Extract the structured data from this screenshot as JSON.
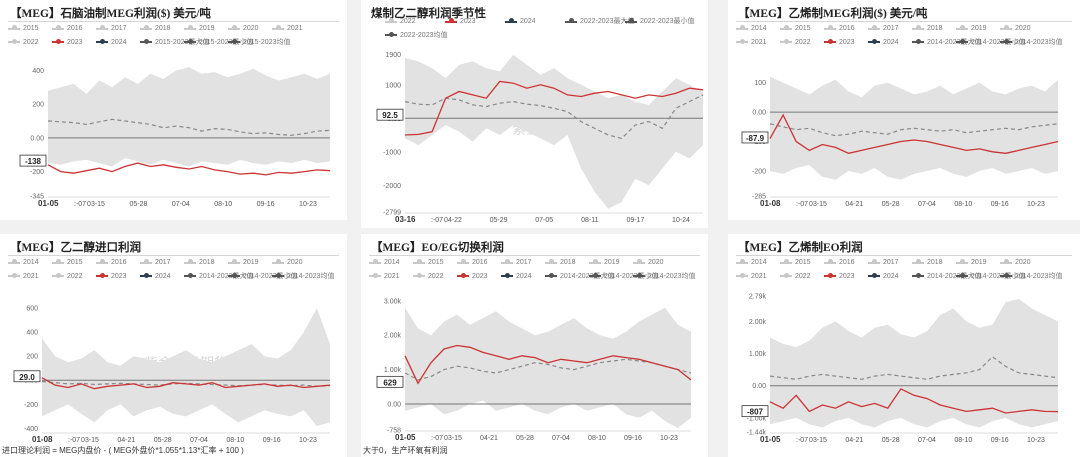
{
  "watermark": "紫金天风期货",
  "notes": {
    "bottom_left": "进口理论利润 = MEG内盘价 - ( MEG外盘价*1.055*1.13*汇率 + 100 )",
    "bottom_mid": "大于0，生产环氧有利润"
  },
  "colors": {
    "grey": "#c8c8c8",
    "red": "#cc3333",
    "navy": "#2c3e50",
    "dark": "#555555",
    "band": "#e2e2e2"
  },
  "chart_data": [
    {
      "id": "p1",
      "type": "line",
      "title": "【MEG】石脑油制MEG利润($) 美元/吨",
      "legend": [
        "2015",
        "2016",
        "2017",
        "2018",
        "2019",
        "2020",
        "2021",
        "2022",
        "2023",
        "2024",
        "2015-2023最大值",
        "2015-2023最小值",
        "2015-2023均值"
      ],
      "yticks": [
        {
          "v": 400,
          "t": "400"
        },
        {
          "v": 200,
          "t": "200"
        },
        {
          "v": 0,
          "t": "0.00"
        },
        {
          "v": -200,
          "t": "-200"
        },
        {
          "v": -345,
          "t": "-345"
        }
      ],
      "ylim": [
        -345,
        450
      ],
      "xticks": [
        "01-05",
        "03-15",
        "05-28",
        "07-04",
        "08-10",
        "09-16",
        "10-23"
      ],
      "x_extra": ":-07",
      "badge": "-138",
      "band_upper": [
        280,
        300,
        320,
        260,
        340,
        300,
        360,
        320,
        380,
        350,
        400,
        420,
        380,
        390,
        360,
        380,
        410,
        370,
        340,
        360,
        380,
        350,
        380
      ],
      "band_lower": [
        -150,
        -160,
        -140,
        -130,
        -150,
        -170,
        -120,
        -140,
        -160,
        -130,
        -150,
        -170,
        -140,
        -150,
        -160,
        -130,
        -150,
        -160,
        -140,
        -150,
        -130,
        -150,
        -140
      ],
      "mean": [
        100,
        95,
        90,
        80,
        95,
        110,
        100,
        90,
        80,
        60,
        70,
        60,
        40,
        55,
        50,
        35,
        25,
        30,
        20,
        15,
        25,
        40,
        45
      ],
      "y2023": [
        -160,
        -200,
        -210,
        -195,
        -180,
        -200,
        -170,
        -150,
        -170,
        -160,
        -175,
        -185,
        -170,
        -190,
        -200,
        -215,
        -210,
        -220,
        -205,
        -210,
        -200,
        -190,
        -195
      ]
    },
    {
      "id": "p2",
      "type": "line",
      "title": "煤制乙二醇利润季节性",
      "legend": [
        "2022",
        "2023",
        "2024",
        "2022-2023最大值",
        "2022-2023最小值",
        "2022-2023均值"
      ],
      "yticks": [
        {
          "v": 1900,
          "t": "1900"
        },
        {
          "v": 1000,
          "t": "1000"
        },
        {
          "v": 0,
          "t": "0.00"
        },
        {
          "v": -1000,
          "t": "-1000"
        },
        {
          "v": -2000,
          "t": "-2000"
        },
        {
          "v": -2799,
          "t": "-2799"
        }
      ],
      "ylim": [
        -2799,
        2100
      ],
      "xticks": [
        "03-16",
        "04-22",
        "05-29",
        "07-05",
        "08-11",
        "09-17",
        "10-24"
      ],
      "x_extra": ":-07",
      "badge": "92.5",
      "band_upper": [
        1800,
        1700,
        1500,
        1200,
        1600,
        1700,
        1500,
        1400,
        1900,
        1600,
        1300,
        1500,
        1200,
        1000,
        800,
        600,
        700,
        500,
        400,
        800,
        1200,
        1000,
        800
      ],
      "band_lower": [
        -600,
        -800,
        -500,
        -200,
        -400,
        -700,
        -300,
        -500,
        -200,
        -400,
        -600,
        -800,
        -500,
        -1500,
        -2200,
        -2700,
        -2500,
        -1800,
        -2000,
        -1500,
        -1000,
        -1200,
        -800
      ],
      "mean": [
        500,
        420,
        400,
        600,
        550,
        400,
        350,
        450,
        500,
        420,
        380,
        300,
        200,
        -100,
        -300,
        -500,
        -600,
        -200,
        -100,
        -300,
        300,
        500,
        700
      ],
      "y2023": [
        -500,
        -480,
        -400,
        600,
        800,
        700,
        600,
        1100,
        1050,
        900,
        1000,
        900,
        700,
        650,
        750,
        800,
        700,
        600,
        700,
        650,
        750,
        900,
        850
      ]
    },
    {
      "id": "p3",
      "type": "line",
      "title": "【MEG】乙烯制MEG利润($) 美元/吨",
      "legend": [
        "2014",
        "2015",
        "2016",
        "2017",
        "2018",
        "2019",
        "2020",
        "2021",
        "2022",
        "2023",
        "2024",
        "2014-2023最大值",
        "2014-2023最小值",
        "2014-2023均值"
      ],
      "yticks": [
        {
          "v": 100,
          "t": "100"
        },
        {
          "v": 0,
          "t": "0.00"
        },
        {
          "v": -100,
          "t": "-100"
        },
        {
          "v": -200,
          "t": "-200"
        },
        {
          "v": -285,
          "t": "-285"
        }
      ],
      "ylim": [
        -285,
        170
      ],
      "xticks": [
        "01-08",
        "03-15",
        "04-21",
        "05-28",
        "07-04",
        "08-10",
        "09-16",
        "10-23"
      ],
      "x_extra": ":-07",
      "badge": "-87.9",
      "band_upper": [
        120,
        100,
        80,
        60,
        90,
        110,
        70,
        50,
        90,
        100,
        80,
        60,
        70,
        90,
        60,
        80,
        100,
        70,
        60,
        80,
        90,
        70,
        110
      ],
      "band_lower": [
        -200,
        -210,
        -190,
        -180,
        -220,
        -230,
        -200,
        -210,
        -190,
        -220,
        -230,
        -210,
        -200,
        -190,
        -210,
        -220,
        -200,
        -190,
        -210,
        -200,
        -190,
        -210,
        -200
      ],
      "mean": [
        -40,
        -50,
        -60,
        -55,
        -70,
        -80,
        -75,
        -65,
        -70,
        -75,
        -60,
        -55,
        -60,
        -65,
        -60,
        -70,
        -65,
        -60,
        -55,
        -60,
        -50,
        -45,
        -40
      ],
      "y2023": [
        -90,
        -10,
        -100,
        -130,
        -110,
        -120,
        -140,
        -130,
        -120,
        -110,
        -100,
        -95,
        -100,
        -110,
        -120,
        -130,
        -125,
        -135,
        -140,
        -130,
        -120,
        -110,
        -100
      ]
    },
    {
      "id": "p4",
      "type": "line",
      "title": "【MEG】乙二醇进口利润",
      "legend": [
        "2014",
        "2015",
        "2016",
        "2017",
        "2018",
        "2019",
        "2020",
        "2021",
        "2022",
        "2023",
        "2024",
        "2014-2023最大值",
        "2014-2023最小值",
        "2014-2023均值"
      ],
      "yticks": [
        {
          "v": 600,
          "t": "600"
        },
        {
          "v": 400,
          "t": "400"
        },
        {
          "v": 200,
          "t": "200"
        },
        {
          "v": 0,
          "t": "0.00"
        },
        {
          "v": -200,
          "t": "-200"
        },
        {
          "v": -400,
          "t": "-400"
        }
      ],
      "ylim": [
        -430,
        700
      ],
      "xticks": [
        "01-08",
        "03-15",
        "04-21",
        "05-28",
        "07-04",
        "08-10",
        "09-16",
        "10-23"
      ],
      "x_extra": ":-07",
      "badge": "29.0",
      "band_upper": [
        350,
        200,
        150,
        180,
        250,
        150,
        120,
        200,
        180,
        150,
        200,
        250,
        180,
        150,
        200,
        250,
        300,
        200,
        180,
        250,
        400,
        600,
        300
      ],
      "band_lower": [
        -300,
        -250,
        -200,
        -280,
        -350,
        -250,
        -200,
        -300,
        -250,
        -220,
        -280,
        -300,
        -250,
        -200,
        -280,
        -350,
        -300,
        -250,
        -280,
        -300,
        -250,
        -380,
        -350
      ],
      "mean": [
        -10,
        -20,
        -30,
        -25,
        -35,
        -30,
        -25,
        -30,
        -35,
        -40,
        -30,
        -25,
        -30,
        -35,
        -40,
        -45,
        -40,
        -35,
        -40,
        -45,
        -40,
        -50,
        -45
      ],
      "y2023": [
        20,
        -40,
        -60,
        -30,
        -70,
        -50,
        -40,
        -30,
        -60,
        -50,
        -20,
        -30,
        -40,
        -20,
        -60,
        -50,
        -40,
        -30,
        -50,
        -40,
        -60,
        -50,
        -40
      ]
    },
    {
      "id": "p5",
      "type": "line",
      "title": "【MEG】EO/EG切换利润",
      "legend": [
        "2014",
        "2015",
        "2016",
        "2017",
        "2018",
        "2019",
        "2020",
        "2021",
        "2022",
        "2023",
        "2024",
        "2014-2023最大值",
        "2014-2023最小值",
        "2014-2023均值"
      ],
      "yticks": [
        {
          "v": 3000,
          "t": "3.00k"
        },
        {
          "v": 2000,
          "t": "2.00k"
        },
        {
          "v": 1000,
          "t": "1.00k"
        },
        {
          "v": 0,
          "t": "0.00"
        },
        {
          "v": -758,
          "t": "-758"
        }
      ],
      "ylim": [
        -758,
        3200
      ],
      "xticks": [
        "01-05",
        "03-15",
        "04-21",
        "05-28",
        "07-04",
        "08-10",
        "09-16",
        "10-23"
      ],
      "x_extra": ":-07",
      "badge": "629",
      "band_upper": [
        2800,
        2200,
        2000,
        2400,
        2600,
        2300,
        2500,
        2700,
        2400,
        2200,
        2000,
        2100,
        2300,
        2500,
        2200,
        2000,
        1900,
        2100,
        2400,
        2600,
        2800,
        2300,
        2100
      ],
      "band_lower": [
        -200,
        -100,
        0,
        -300,
        -200,
        0,
        100,
        -200,
        -100,
        0,
        -200,
        -300,
        -100,
        0,
        -200,
        -100,
        0,
        -300,
        -400,
        -200,
        -500,
        -700,
        -400
      ],
      "mean": [
        900,
        700,
        800,
        1000,
        1100,
        1050,
        950,
        900,
        1000,
        1100,
        1200,
        1150,
        1050,
        1000,
        1100,
        1200,
        1250,
        1300,
        1250,
        1200,
        1100,
        1000,
        900
      ],
      "y2023": [
        1400,
        600,
        1200,
        1600,
        1700,
        1650,
        1500,
        1400,
        1300,
        1400,
        1350,
        1200,
        1300,
        1250,
        1200,
        1300,
        1400,
        1350,
        1300,
        1200,
        1100,
        1000,
        700
      ]
    },
    {
      "id": "p6",
      "type": "line",
      "title": "【MEG】乙烯制EO利润",
      "legend": [
        "2014",
        "2015",
        "2016",
        "2017",
        "2018",
        "2019",
        "2020",
        "2021",
        "2022",
        "2023",
        "2024",
        "2014-2023最大值",
        "2014-2023最小值",
        "2014-2023均值"
      ],
      "yticks": [
        {
          "v": 2790,
          "t": "2.79k"
        },
        {
          "v": 2000,
          "t": "2.00k"
        },
        {
          "v": 1000,
          "t": "1.00k"
        },
        {
          "v": 0,
          "t": "0.00"
        },
        {
          "v": -1000,
          "t": "-1.00k"
        },
        {
          "v": -1440,
          "t": "-1.44k"
        }
      ],
      "ylim": [
        -1440,
        2790
      ],
      "xticks": [
        "01-05",
        "03-15",
        "04-21",
        "05-28",
        "07-04",
        "08-10",
        "09-16",
        "10-23"
      ],
      "x_extra": ":-07",
      "badge": "-807",
      "band_upper": [
        1500,
        1300,
        1200,
        1400,
        1800,
        2000,
        1700,
        1500,
        1800,
        1900,
        1600,
        1500,
        1700,
        2200,
        2400,
        2000,
        1800,
        1900,
        2600,
        2700,
        2400,
        2200,
        2000
      ],
      "band_lower": [
        -1200,
        -1100,
        -1000,
        -1200,
        -1300,
        -1100,
        -1000,
        -1200,
        -1300,
        -1100,
        -1000,
        -1200,
        -1300,
        -1100,
        -1000,
        -1200,
        -1300,
        -1100,
        -1000,
        -1200,
        -1300,
        -1200,
        -1100
      ],
      "mean": [
        300,
        250,
        200,
        300,
        350,
        300,
        250,
        200,
        300,
        350,
        300,
        250,
        200,
        300,
        350,
        400,
        500,
        900,
        600,
        400,
        350,
        300,
        250
      ],
      "y2023": [
        -500,
        -700,
        -300,
        -800,
        -600,
        -700,
        -500,
        -650,
        -550,
        -700,
        -100,
        -300,
        -400,
        -600,
        -700,
        -800,
        -750,
        -700,
        -850,
        -800,
        -750,
        -800,
        -807
      ]
    }
  ]
}
